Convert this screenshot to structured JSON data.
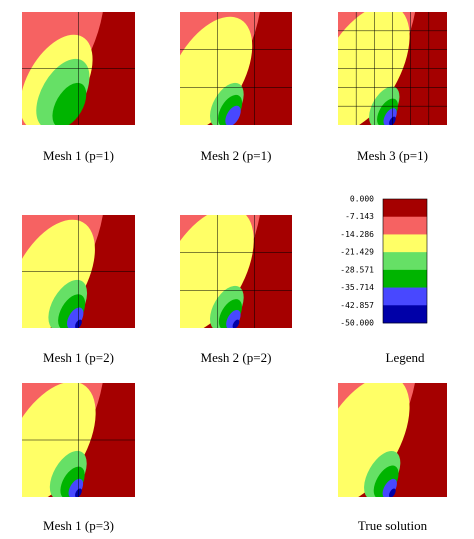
{
  "panels": [
    {
      "caption": "Mesh 1 (p=1)"
    },
    {
      "caption": "Mesh 2 (p=1)"
    },
    {
      "caption": "Mesh 3 (p=1)"
    },
    {
      "caption": "Mesh 1 (p=2)"
    },
    {
      "caption": "Mesh 2 (p=2)"
    },
    {
      "caption": "Mesh 1 (p=3)"
    },
    {
      "caption": "True solution"
    }
  ],
  "legend": {
    "title": "Legend",
    "labels": [
      "0.000",
      "-7.143",
      "-14.286",
      "-21.429",
      "-28.571",
      "-35.714",
      "-42.857",
      "-50.000"
    ]
  }
}
